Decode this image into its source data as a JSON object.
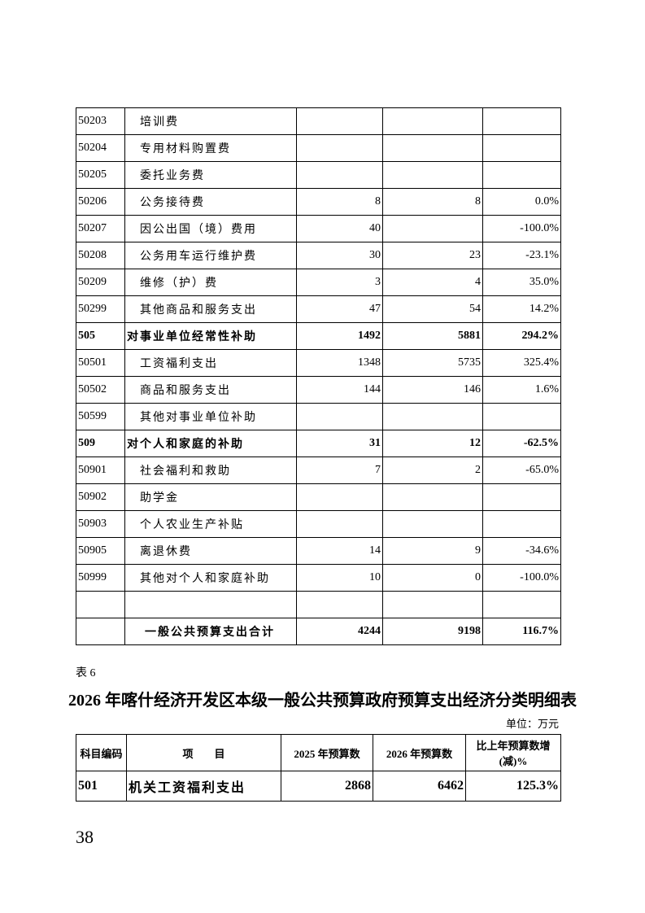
{
  "table5_continued": {
    "rows": [
      {
        "code": "50203",
        "name": "培训费",
        "y2025": "",
        "y2026": "",
        "change": ""
      },
      {
        "code": "50204",
        "name": "专用材料购置费",
        "y2025": "",
        "y2026": "",
        "change": ""
      },
      {
        "code": "50205",
        "name": "委托业务费",
        "y2025": "",
        "y2026": "",
        "change": ""
      },
      {
        "code": "50206",
        "name": "公务接待费",
        "y2025": "8",
        "y2026": "8",
        "change": "0.0%"
      },
      {
        "code": "50207",
        "name": "因公出国（境）费用",
        "y2025": "40",
        "y2026": "",
        "change": "-100.0%"
      },
      {
        "code": "50208",
        "name": "公务用车运行维护费",
        "y2025": "30",
        "y2026": "23",
        "change": "-23.1%"
      },
      {
        "code": "50209",
        "name": "维修（护）费",
        "y2025": "3",
        "y2026": "4",
        "change": "35.0%"
      },
      {
        "code": "50299",
        "name": "其他商品和服务支出",
        "y2025": "47",
        "y2026": "54",
        "change": "14.2%"
      },
      {
        "code": "505",
        "name": "对事业单位经常性补助",
        "y2025": "1492",
        "y2026": "5881",
        "change": "294.2%",
        "bold": true
      },
      {
        "code": "50501",
        "name": "工资福利支出",
        "y2025": "1348",
        "y2026": "5735",
        "change": "325.4%"
      },
      {
        "code": "50502",
        "name": "商品和服务支出",
        "y2025": "144",
        "y2026": "146",
        "change": "1.6%"
      },
      {
        "code": "50599",
        "name": "其他对事业单位补助",
        "y2025": "",
        "y2026": "",
        "change": ""
      },
      {
        "code": "509",
        "name": "对个人和家庭的补助",
        "y2025": "31",
        "y2026": "12",
        "change": "-62.5%",
        "bold": true
      },
      {
        "code": "50901",
        "name": "社会福利和救助",
        "y2025": "7",
        "y2026": "2",
        "change": "-65.0%"
      },
      {
        "code": "50902",
        "name": "助学金",
        "y2025": "",
        "y2026": "",
        "change": ""
      },
      {
        "code": "50903",
        "name": "个人农业生产补贴",
        "y2025": "",
        "y2026": "",
        "change": ""
      },
      {
        "code": "50905",
        "name": "离退休费",
        "y2025": "14",
        "y2026": "9",
        "change": "-34.6%"
      },
      {
        "code": "50999",
        "name": "其他对个人和家庭补助",
        "y2025": "10",
        "y2026": "0",
        "change": "-100.0%"
      },
      {
        "code": "",
        "name": "",
        "y2025": "",
        "y2026": "",
        "change": ""
      },
      {
        "code": "",
        "name": "一般公共预算支出合计",
        "y2025": "4244",
        "y2026": "9198",
        "change": "116.7%",
        "bold": true,
        "total": true
      }
    ]
  },
  "table6": {
    "label": "表 6",
    "title": "2026 年喀什经济开发区本级一般公共预算政府预算支出经济分类明细表",
    "unit": "单位：万元",
    "headers": [
      "科目编码",
      "项　　目",
      "2025 年预算数",
      "2026 年预算数",
      "比上年预算数增(减)%"
    ],
    "rows": [
      {
        "code": "501",
        "name": "机关工资福利支出",
        "y2025": "2868",
        "y2026": "6462",
        "change": "125.3%"
      }
    ]
  },
  "page_number": "38"
}
